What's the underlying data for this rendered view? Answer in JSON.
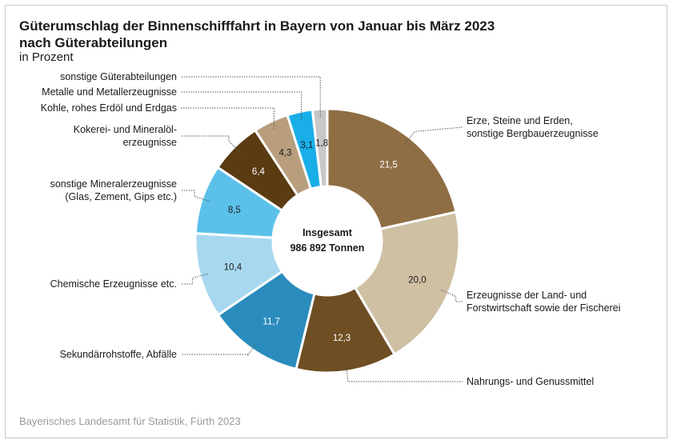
{
  "chart_data": {
    "type": "pie",
    "title_line1": "Güterumschlag der Binnenschifffahrt in Bayern von Januar bis März 2023",
    "title_line2": "nach Güterabteilungen",
    "subtitle": "in Prozent",
    "center_line1": "Insgesamt",
    "center_line2": "986 892 Tonnen",
    "source": "Bayerisches Landesamt für Statistik, Fürth 2023",
    "slices": [
      {
        "label": [
          "Erze, Steine und Erden,",
          "sonstige Bergbauerzeugnisse"
        ],
        "value": 21.5,
        "value_label": "21,5",
        "color": "#8f6e44",
        "value_color": "#ffffff"
      },
      {
        "label": [
          "Erzeugnisse der Land- und",
          "Forstwirtschaft sowie der Fischerei"
        ],
        "value": 20.0,
        "value_label": "20,0",
        "color": "#cfc0a3",
        "value_color": "#1a1a1a"
      },
      {
        "label": [
          "Nahrungs- und Genussmittel"
        ],
        "value": 12.3,
        "value_label": "12,3",
        "color": "#6e4e22",
        "value_color": "#ffffff"
      },
      {
        "label": [
          "Sekundärrohstoffe, Abfälle"
        ],
        "value": 11.7,
        "value_label": "11,7",
        "color": "#2a8cbc",
        "value_color": "#ffffff"
      },
      {
        "label": [
          "Chemische Erzeugnisse etc."
        ],
        "value": 10.4,
        "value_label": "10,4",
        "color": "#a8d8ef",
        "value_color": "#1a1a1a"
      },
      {
        "label": [
          "sonstige Mineralerzeugnisse",
          "(Glas, Zement, Gips etc.)"
        ],
        "value": 8.5,
        "value_label": "8,5",
        "color": "#5cc1ea",
        "value_color": "#1a1a1a"
      },
      {
        "label": [
          "Kokerei- und Mineralöl-",
          "erzeugnisse"
        ],
        "value": 6.4,
        "value_label": "6,4",
        "color": "#5a3b12",
        "value_color": "#ffffff"
      },
      {
        "label": [
          "Kohle, rohes Erdöl und Erdgas"
        ],
        "value": 4.3,
        "value_label": "4,3",
        "color": "#b89e7c",
        "value_color": "#1a1a1a"
      },
      {
        "label": [
          "Metalle und Metallerzeugnisse"
        ],
        "value": 3.1,
        "value_label": "3,1",
        "color": "#19aee8",
        "value_color": "#1a1a1a"
      },
      {
        "label": [
          "sonstige Güterabteilungen"
        ],
        "value": 1.8,
        "value_label": "1,8",
        "color": "#c8c8c8",
        "value_color": "#1a1a1a"
      }
    ]
  }
}
